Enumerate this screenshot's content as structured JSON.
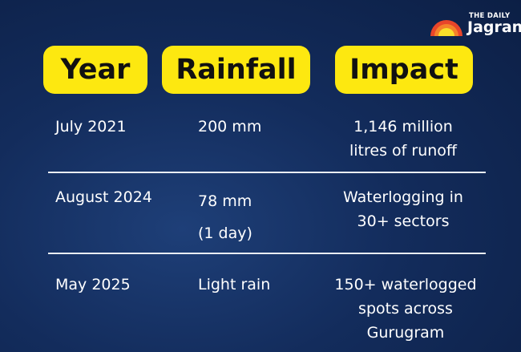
{
  "logo": {
    "small": "THE DAILY",
    "big": "Jagran"
  },
  "headers": [
    "Year",
    "Rainfall",
    "Impact"
  ],
  "rows": [
    {
      "year": "July 2021",
      "rainfall": [
        "200 mm"
      ],
      "impact": [
        "1,146 million",
        "litres of runoff"
      ]
    },
    {
      "year": "August 2024",
      "rainfall": [
        "78 mm",
        "(1 day)"
      ],
      "impact": [
        "Waterlogging in",
        "30+ sectors"
      ]
    },
    {
      "year": "May 2025",
      "rainfall": [
        "Light rain"
      ],
      "impact": [
        "150+ waterlogged",
        "spots across",
        "Gurugram"
      ]
    }
  ],
  "colors": {
    "highlight": "#fde810",
    "background": "#132c5c"
  }
}
